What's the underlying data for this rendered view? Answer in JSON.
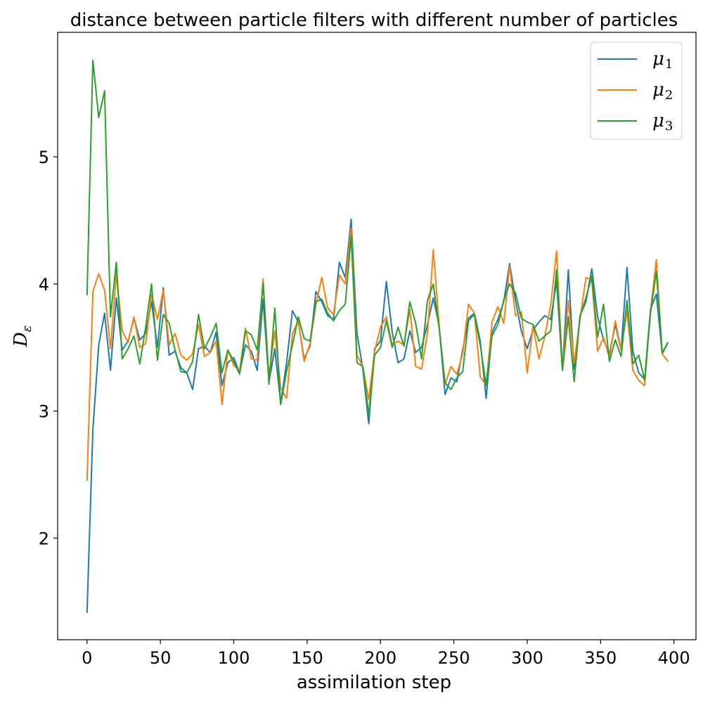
{
  "chart_data": {
    "type": "line",
    "title": "distance between particle filters with different number of particles",
    "xlabel": "assimilation step",
    "ylabel": "D_ε",
    "ylabel_main": "D",
    "ylabel_sub": "ε",
    "xlim": [
      -20,
      415
    ],
    "ylim": [
      1.2,
      5.98
    ],
    "xticks": [
      0,
      50,
      100,
      150,
      200,
      250,
      300,
      350,
      400
    ],
    "xtick_labels": [
      "0",
      "50",
      "100",
      "150",
      "200",
      "250",
      "300",
      "350",
      "400"
    ],
    "yticks": [
      2,
      3,
      4,
      5
    ],
    "ytick_labels": [
      "2",
      "3",
      "4",
      "5"
    ],
    "grid": false,
    "legend": "top-right",
    "x": [
      0,
      4,
      8,
      12,
      16,
      20,
      24,
      28,
      32,
      36,
      40,
      44,
      48,
      52,
      56,
      60,
      64,
      68,
      72,
      76,
      80,
      84,
      88,
      92,
      96,
      100,
      104,
      108,
      112,
      116,
      120,
      124,
      128,
      132,
      136,
      140,
      144,
      148,
      152,
      156,
      160,
      164,
      168,
      172,
      176,
      180,
      184,
      188,
      192,
      196,
      200,
      204,
      208,
      212,
      216,
      220,
      224,
      228,
      232,
      236,
      240,
      244,
      248,
      252,
      256,
      260,
      264,
      268,
      272,
      276,
      280,
      284,
      288,
      292,
      296,
      300,
      304,
      308,
      312,
      316,
      320,
      324,
      328,
      332,
      336,
      340,
      344,
      348,
      352,
      356,
      360,
      364,
      368,
      372,
      376,
      380,
      384,
      388,
      392,
      396
    ],
    "series": [
      {
        "name": "μ1",
        "name_main": "μ",
        "name_sub": "1",
        "color": "#1f77b4",
        "values": [
          1.41,
          2.85,
          3.52,
          3.77,
          3.32,
          3.89,
          3.48,
          3.55,
          3.73,
          3.56,
          3.61,
          3.86,
          3.5,
          3.97,
          3.44,
          3.47,
          3.34,
          3.3,
          3.17,
          3.49,
          3.51,
          3.46,
          3.62,
          3.2,
          3.38,
          3.42,
          3.3,
          3.52,
          3.47,
          3.32,
          3.88,
          3.23,
          3.49,
          3.06,
          3.38,
          3.79,
          3.7,
          3.41,
          3.51,
          3.94,
          3.86,
          3.75,
          3.72,
          4.17,
          4.05,
          4.51,
          3.61,
          3.33,
          2.9,
          3.49,
          3.55,
          4.02,
          3.62,
          3.38,
          3.41,
          3.63,
          3.46,
          3.5,
          3.68,
          3.89,
          3.67,
          3.13,
          3.26,
          3.23,
          3.48,
          3.73,
          3.77,
          3.55,
          3.1,
          3.62,
          3.72,
          3.86,
          4.16,
          3.87,
          3.63,
          3.49,
          3.64,
          3.7,
          3.75,
          3.72,
          4.02,
          3.32,
          4.11,
          3.33,
          3.75,
          3.86,
          4.12,
          3.74,
          3.56,
          3.45,
          3.68,
          3.48,
          4.13,
          3.47,
          3.3,
          3.25,
          3.8,
          3.92,
          3.45,
          3.54
        ]
      },
      {
        "name": "μ2",
        "name_main": "μ",
        "name_sub": "2",
        "color": "#ff7f0e",
        "values": [
          2.45,
          3.94,
          4.08,
          3.95,
          3.49,
          4.08,
          3.63,
          3.54,
          3.74,
          3.5,
          3.53,
          3.92,
          3.72,
          3.95,
          3.52,
          3.61,
          3.44,
          3.4,
          3.45,
          3.68,
          3.43,
          3.46,
          3.55,
          3.05,
          3.48,
          3.36,
          3.32,
          3.65,
          3.41,
          3.4,
          4.04,
          3.27,
          3.63,
          3.18,
          3.1,
          3.61,
          3.71,
          3.39,
          3.53,
          3.84,
          4.05,
          3.81,
          3.76,
          4.07,
          4.0,
          4.44,
          3.44,
          3.35,
          3.09,
          3.47,
          3.66,
          3.74,
          3.52,
          3.55,
          3.52,
          3.8,
          3.35,
          3.33,
          3.61,
          4.27,
          3.67,
          3.21,
          3.35,
          3.29,
          3.45,
          3.84,
          3.77,
          3.27,
          3.2,
          3.7,
          3.82,
          3.69,
          4.14,
          3.75,
          3.78,
          3.3,
          3.67,
          3.41,
          3.59,
          3.83,
          4.26,
          3.33,
          3.87,
          3.38,
          3.72,
          4.05,
          4.03,
          3.47,
          3.58,
          3.42,
          3.71,
          3.48,
          3.79,
          3.32,
          3.24,
          3.2,
          3.79,
          4.19,
          3.45,
          3.39
        ]
      },
      {
        "name": "μ3",
        "name_main": "μ",
        "name_sub": "3",
        "color": "#2ca02c",
        "values": [
          3.91,
          5.76,
          5.31,
          5.52,
          3.74,
          4.17,
          3.41,
          3.49,
          3.59,
          3.37,
          3.66,
          4.0,
          3.4,
          3.76,
          3.69,
          3.48,
          3.31,
          3.3,
          3.39,
          3.76,
          3.49,
          3.58,
          3.69,
          3.3,
          3.48,
          3.39,
          3.29,
          3.63,
          3.6,
          3.48,
          4.01,
          3.21,
          3.81,
          3.05,
          3.31,
          3.52,
          3.74,
          3.57,
          3.55,
          3.86,
          3.88,
          3.77,
          3.71,
          3.79,
          3.84,
          4.38,
          3.38,
          3.35,
          2.97,
          3.44,
          3.5,
          3.71,
          3.5,
          3.66,
          3.51,
          3.86,
          3.69,
          3.41,
          3.87,
          4.0,
          3.65,
          3.22,
          3.17,
          3.26,
          3.31,
          3.71,
          3.76,
          3.52,
          3.2,
          3.59,
          3.68,
          3.87,
          4.0,
          3.93,
          3.73,
          3.7,
          3.68,
          3.55,
          3.59,
          3.63,
          4.11,
          3.32,
          3.74,
          3.23,
          3.75,
          3.89,
          4.06,
          3.58,
          3.84,
          3.39,
          3.56,
          3.43,
          3.87,
          3.37,
          3.44,
          3.24,
          3.77,
          4.1,
          3.46,
          3.54
        ]
      }
    ]
  }
}
